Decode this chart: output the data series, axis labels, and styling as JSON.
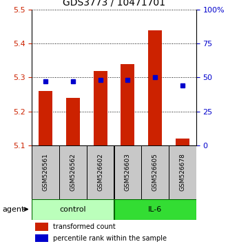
{
  "title": "GDS3773 / 10471701",
  "samples": [
    "GSM526561",
    "GSM526562",
    "GSM526602",
    "GSM526603",
    "GSM526605",
    "GSM526678"
  ],
  "bar_values": [
    5.26,
    5.24,
    5.32,
    5.34,
    5.44,
    5.12
  ],
  "percentile_values": [
    47,
    47,
    48,
    48,
    50,
    44
  ],
  "ylim": [
    5.1,
    5.5
  ],
  "yticks": [
    5.1,
    5.2,
    5.3,
    5.4,
    5.5
  ],
  "right_yticks": [
    0,
    25,
    50,
    75,
    100
  ],
  "right_ylim": [
    0,
    100
  ],
  "bar_color": "#cc2200",
  "percentile_color": "#0000cc",
  "bar_width": 0.5,
  "control_color": "#bbffbb",
  "il6_color": "#33dd33",
  "title_fontsize": 10,
  "legend_fontsize": 7,
  "agent_label": "agent",
  "ylabel_color": "#cc2200",
  "right_ylabel_color": "#0000cc",
  "sample_bg_color": "#c8c8c8",
  "grid_color": "#000000"
}
